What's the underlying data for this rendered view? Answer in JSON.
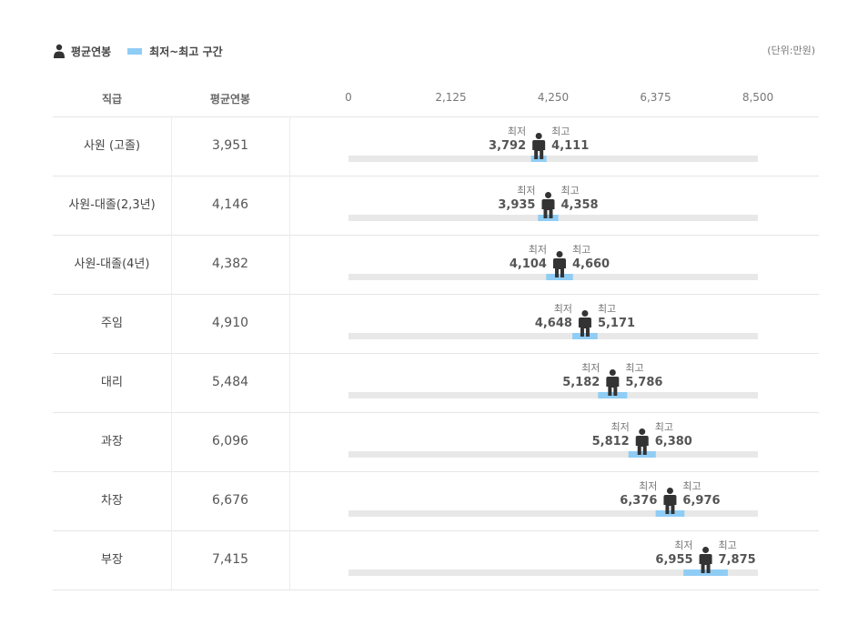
{
  "legend": {
    "avg_label": "평균연봉",
    "range_label": "최저~최고 구간",
    "avg_icon": "person-icon",
    "range_color": "#8fcdf5"
  },
  "unit_label": "(단위:만원)",
  "table_headers": {
    "grade": "직급",
    "avg": "평균연봉"
  },
  "min_label": "최저",
  "max_label": "최고",
  "colors": {
    "track": "#e8e8e8",
    "range": "#8fcdf5",
    "person": "#333333"
  },
  "chart_data": {
    "type": "bar",
    "title": "",
    "xlim": [
      0,
      8500
    ],
    "ticks": [
      "0",
      "2,125",
      "4,250",
      "6,375",
      "8,500"
    ],
    "tick_values": [
      0,
      2125,
      4250,
      6375,
      8500
    ],
    "categories": [
      "사원 (고졸)",
      "사원-대졸(2,3년)",
      "사원-대졸(4년)",
      "주임",
      "대리",
      "과장",
      "차장",
      "부장"
    ],
    "avg_text": [
      "3,951",
      "4,146",
      "4,382",
      "4,910",
      "5,484",
      "6,096",
      "6,676",
      "7,415"
    ],
    "avg": [
      3951,
      4146,
      4382,
      4910,
      5484,
      6096,
      6676,
      7415
    ],
    "min_text": [
      "3,792",
      "3,935",
      "4,104",
      "4,648",
      "5,182",
      "5,812",
      "6,376",
      "6,955"
    ],
    "min": [
      3792,
      3935,
      4104,
      4648,
      5182,
      5812,
      6376,
      6955
    ],
    "max_text": [
      "4,111",
      "4,358",
      "4,660",
      "5,171",
      "5,786",
      "6,380",
      "6,976",
      "7,875"
    ],
    "max": [
      4111,
      4358,
      4660,
      5171,
      5786,
      6380,
      6976,
      7875
    ]
  }
}
